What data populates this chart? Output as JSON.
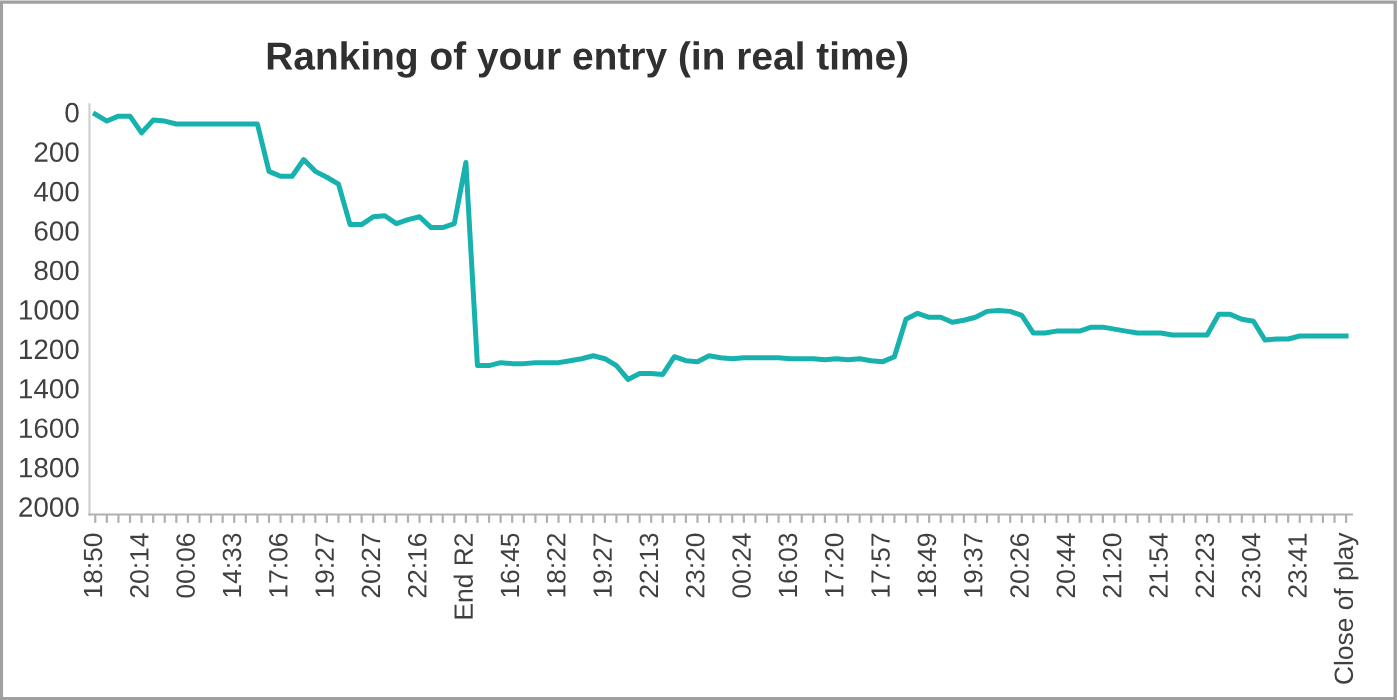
{
  "chart_data": {
    "type": "line",
    "title": "Ranking of your entry (in real time)",
    "categories": [
      "18:50",
      null,
      null,
      null,
      "20:14",
      null,
      null,
      null,
      "00:06",
      null,
      null,
      null,
      "14:33",
      null,
      null,
      null,
      "17:06",
      null,
      null,
      null,
      "19:27",
      null,
      null,
      null,
      "20:27",
      null,
      null,
      null,
      "22:16",
      null,
      null,
      null,
      "End R2",
      null,
      null,
      null,
      "16:45",
      null,
      null,
      null,
      "18:22",
      null,
      null,
      null,
      "19:27",
      null,
      null,
      null,
      "22:13",
      null,
      null,
      null,
      "23:20",
      null,
      null,
      null,
      "00:24",
      null,
      null,
      null,
      "16:03",
      null,
      null,
      null,
      "17:20",
      null,
      null,
      null,
      "17:57",
      null,
      null,
      null,
      "18:49",
      null,
      null,
      null,
      "19:37",
      null,
      null,
      null,
      "20:26",
      null,
      null,
      null,
      "20:44",
      null,
      null,
      null,
      "21:20",
      null,
      null,
      null,
      "21:54",
      null,
      null,
      null,
      "22:23",
      null,
      null,
      null,
      "23:04",
      null,
      null,
      null,
      "23:41",
      null,
      null,
      null,
      "Close of play"
    ],
    "series": [
      {
        "color": "#17b2ae",
        "values": [
          10,
          45,
          20,
          20,
          105,
          40,
          45,
          60,
          60,
          60,
          60,
          60,
          60,
          60,
          60,
          300,
          325,
          325,
          240,
          300,
          330,
          365,
          570,
          570,
          530,
          525,
          565,
          545,
          530,
          585,
          585,
          565,
          255,
          1285,
          1285,
          1270,
          1275,
          1275,
          1270,
          1270,
          1270,
          1260,
          1250,
          1235,
          1250,
          1285,
          1355,
          1325,
          1325,
          1330,
          1240,
          1260,
          1265,
          1235,
          1245,
          1250,
          1245,
          1245,
          1245,
          1245,
          1250,
          1250,
          1250,
          1255,
          1250,
          1255,
          1250,
          1260,
          1265,
          1240,
          1050,
          1020,
          1040,
          1040,
          1065,
          1055,
          1040,
          1010,
          1005,
          1010,
          1030,
          1120,
          1120,
          1110,
          1110,
          1110,
          1090,
          1090,
          1100,
          1110,
          1120,
          1120,
          1120,
          1130,
          1130,
          1130,
          1130,
          1025,
          1025,
          1050,
          1060,
          1155,
          1150,
          1150,
          1135,
          1135,
          1135,
          1135,
          1135
        ]
      }
    ],
    "ylim": [
      2040,
      -40
    ],
    "yticks": [
      0,
      200,
      400,
      600,
      800,
      1000,
      1200,
      1400,
      1600,
      1800,
      2000
    ],
    "grid": false,
    "legend": false,
    "marker": "none",
    "line_style": "solid"
  }
}
